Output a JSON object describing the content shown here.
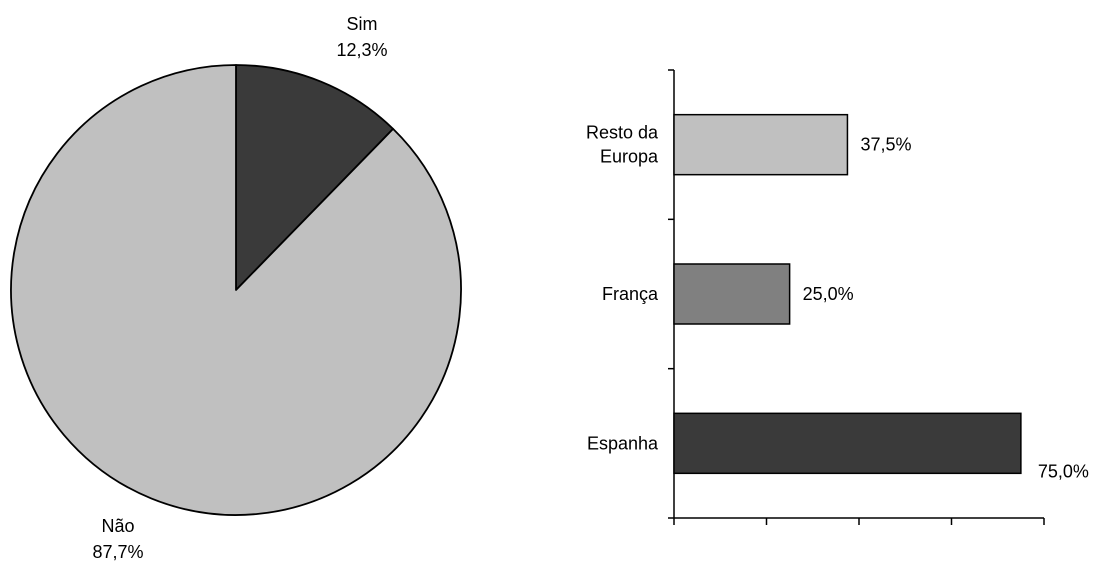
{
  "chart_data": [
    {
      "type": "pie",
      "slices": [
        {
          "label": "Sim",
          "value": 12.3,
          "value_label": "12,3%",
          "color": "#3a3a3a"
        },
        {
          "label": "Não",
          "value": 87.7,
          "value_label": "87,7%",
          "color": "#c0c0c0"
        }
      ],
      "start": "12 o'clock, clockwise",
      "legend": "none"
    },
    {
      "type": "bar",
      "orientation": "horizontal",
      "categories": [
        "Resto da Europa",
        "França",
        "Espanha"
      ],
      "category_lines": [
        [
          "Resto da",
          "Europa"
        ],
        [
          "França"
        ],
        [
          "Espanha"
        ]
      ],
      "values": [
        37.5,
        25.0,
        75.0
      ],
      "value_labels": [
        "37,5%",
        "25,0%",
        "75,0%"
      ],
      "colors": [
        "#c0c0c0",
        "#808080",
        "#3a3a3a"
      ],
      "xlim": [
        0,
        80
      ],
      "x_tick_step": 20,
      "x_tick_labels": "none",
      "grid": false,
      "legend": "none"
    }
  ]
}
